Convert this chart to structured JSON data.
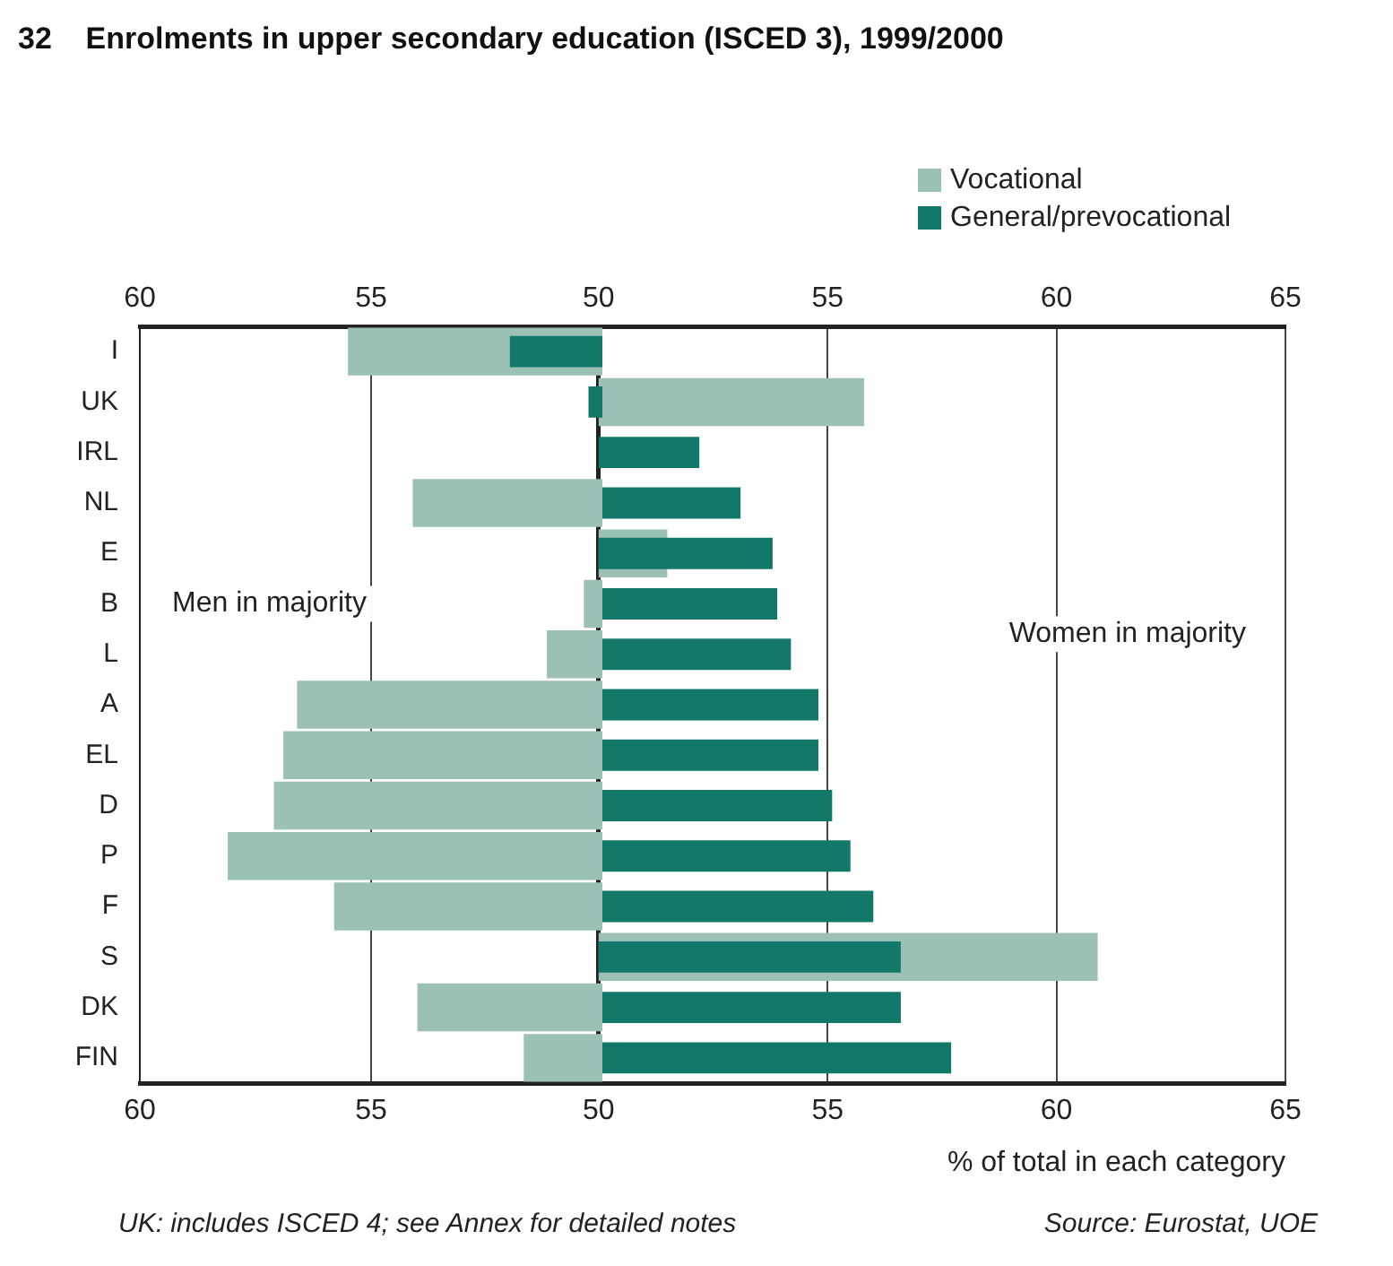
{
  "chart_data": [
    {
      "type": "bar",
      "orientation": "horizontal",
      "title": "32    Enrolments in upper secondary education (ISCED 3), 1999/2000",
      "categories": [
        "I",
        "UK",
        "IRL",
        "NL",
        "E",
        "B",
        "L",
        "A",
        "EL",
        "D",
        "P",
        "F",
        "S",
        "DK",
        "FIN"
      ],
      "series": [
        {
          "color": "#9bc0b6",
          "values": [
            55.5,
            null,
            null,
            54.1,
            null,
            50.4,
            51.2,
            56.6,
            56.9,
            57.1,
            58.1,
            55.8,
            null,
            54.0,
            51.7
          ]
        },
        {
          "color": "#12796a",
          "values": [
            52.0,
            50.3,
            null,
            null,
            null,
            null,
            null,
            null,
            null,
            null,
            null,
            null,
            null,
            null,
            null
          ]
        }
      ],
      "xlim": [
        60,
        50
      ],
      "xticks": [
        60,
        55
      ],
      "x2lim": [
        60,
        50
      ],
      "x2ticks": [
        60,
        55
      ],
      "grid": "x",
      "annotations": [
        "Men in majority"
      ]
    },
    {
      "type": "bar",
      "orientation": "horizontal",
      "xlabel": "% of total in each category",
      "categories": [
        null,
        null,
        null,
        null,
        null,
        null,
        null,
        null,
        null,
        null,
        null,
        null,
        null,
        null,
        null
      ],
      "series": [
        {
          "name": "Vocational",
          "color": "#9bc0b6",
          "values": [
            null,
            55.8,
            null,
            null,
            51.5,
            null,
            null,
            null,
            null,
            null,
            null,
            null,
            60.9,
            null,
            null
          ]
        },
        {
          "name": "General/prevocational",
          "color": "#12796a",
          "values": [
            null,
            null,
            52.2,
            53.1,
            53.8,
            53.9,
            54.2,
            54.8,
            54.8,
            55.1,
            55.5,
            56.0,
            56.6,
            56.6,
            57.7
          ]
        }
      ],
      "xlim": [
        50,
        65
      ],
      "xticks": [
        50,
        55,
        60,
        65
      ],
      "x2lim": [
        50,
        65
      ],
      "x2ticks": [
        50,
        55,
        60,
        65
      ],
      "tick_labels": "x",
      "grid": "x",
      "legend": "top right",
      "annotations": [
        "Women in majority",
        "UK: includes ISCED 4; see Annex for detailed notes",
        "Source: Eurostat, UOE"
      ]
    }
  ]
}
